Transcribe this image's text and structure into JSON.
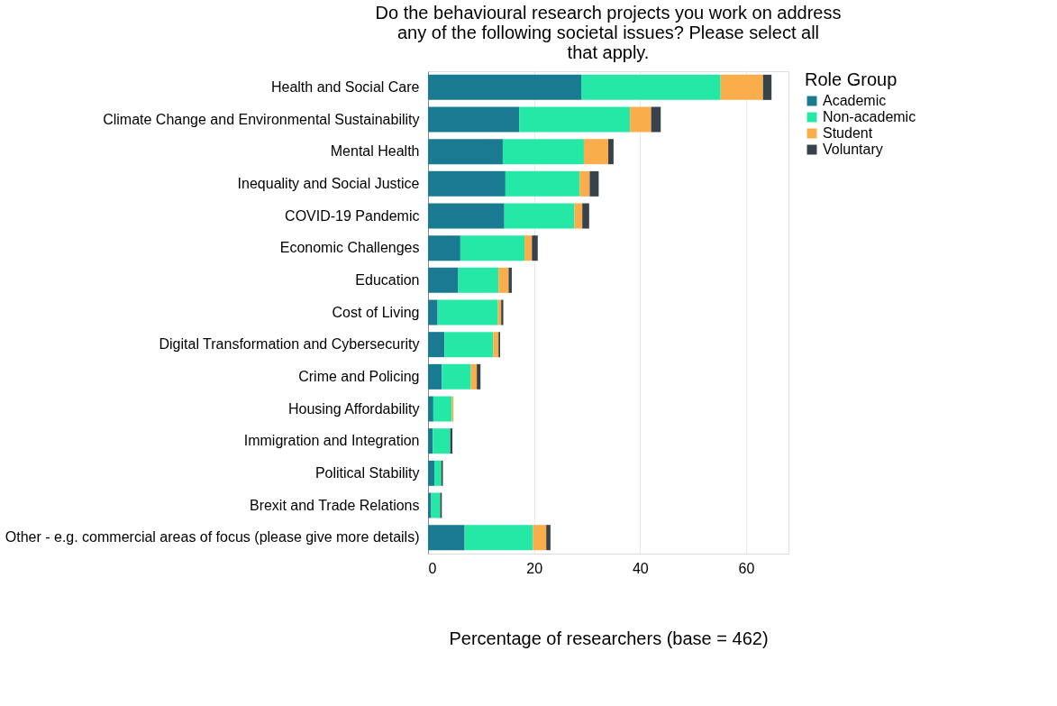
{
  "chart_data": {
    "type": "bar",
    "orientation": "horizontal",
    "stacked": true,
    "title": "Do the behavioural research projects you work on address any of the following societal issues? Please select all that apply.",
    "xlabel": "Percentage of researchers (base = 462)",
    "legend_title": "Role Group",
    "legend": "top right",
    "grid": "x",
    "xlim": [
      0,
      68
    ],
    "xticks": [
      0,
      20,
      40,
      60
    ],
    "categories": [
      "Health and Social Care",
      "Climate Change and Environmental Sustainability",
      "Mental Health",
      "Inequality and Social Justice",
      "COVID-19 Pandemic",
      "Economic Challenges",
      "Education",
      "Cost of Living",
      "Digital Transformation and Cybersecurity",
      "Crime and Policing",
      "Housing Affordability",
      "Immigration and Integration",
      "Political Stability",
      "Brexit and Trade Relations",
      "Other - e.g. commercial areas of focus (please give more details)"
    ],
    "series": [
      {
        "name": "Academic",
        "color": "#1a7a91",
        "values": [
          28.9,
          17.2,
          14.1,
          14.6,
          14.4,
          6.1,
          5.7,
          1.8,
          3.1,
          2.6,
          1.0,
          0.9,
          1.2,
          0.6,
          6.9
        ]
      },
      {
        "name": "Non-academic",
        "color": "#26e8a6",
        "values": [
          26.3,
          20.9,
          15.3,
          14.0,
          13.2,
          12.1,
          7.6,
          11.4,
          9.2,
          5.5,
          3.5,
          3.3,
          1.3,
          1.7,
          12.9
        ]
      },
      {
        "name": "Student",
        "color": "#f9ae4b",
        "values": [
          8.0,
          4.0,
          4.6,
          1.9,
          1.5,
          1.4,
          1.9,
          0.6,
          1.0,
          1.1,
          0.3,
          null,
          null,
          0,
          2.5
        ]
      },
      {
        "name": "Voluntary",
        "color": "#37424a",
        "values": [
          1.6,
          1.8,
          1.0,
          1.7,
          1.3,
          1.1,
          0.6,
          0.4,
          0.3,
          0.7,
          0,
          0.4,
          0.3,
          0.3,
          0.8
        ]
      }
    ]
  }
}
